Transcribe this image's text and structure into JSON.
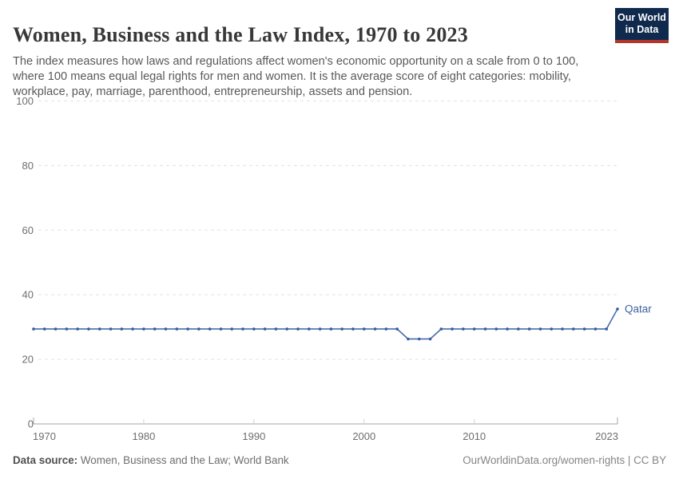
{
  "header": {
    "title": "Women, Business and the Law Index, 1970 to 2023",
    "subtitle": "The index measures how laws and regulations affect women's economic opportunity on a scale from 0 to 100, where 100 means equal legal rights for men and women. It is the average score of eight categories: mobility, workplace, pay, marriage, parenthood, entrepreneurship, assets and pension."
  },
  "logo": {
    "line1": "Our World",
    "line2": "in Data",
    "bg_color": "#102a4e",
    "bar_color": "#b3362b"
  },
  "footer": {
    "datasource_label": "Data source:",
    "datasource_value": " Women, Business and the Law; World Bank",
    "credit": "OurWorldinData.org/women-rights | CC BY"
  },
  "colors": {
    "line": "#4a6cab",
    "point": "#3b5f9f",
    "entity_label": "#3d649f",
    "gridline": "#e3e3e3",
    "axis": "#a6a6a6",
    "decade_tick": "#d0d0d0",
    "tick_label": "#6e6e6e"
  },
  "chart_data": {
    "type": "line",
    "title": "Women, Business and the Law Index, 1970 to 2023",
    "entity": "Qatar",
    "xlabel": "",
    "ylabel": "",
    "xlim": [
      1970,
      2023
    ],
    "ylim": [
      0,
      100
    ],
    "yticks": [
      0,
      20,
      40,
      60,
      80,
      100
    ],
    "xticks": [
      1970,
      1980,
      1990,
      2000,
      2010,
      2023
    ],
    "grid": "horizontal-dashed",
    "legend_position": "end-of-line-label",
    "x": [
      1970,
      1971,
      1972,
      1973,
      1974,
      1975,
      1976,
      1977,
      1978,
      1979,
      1980,
      1981,
      1982,
      1983,
      1984,
      1985,
      1986,
      1987,
      1988,
      1989,
      1990,
      1991,
      1992,
      1993,
      1994,
      1995,
      1996,
      1997,
      1998,
      1999,
      2000,
      2001,
      2002,
      2003,
      2004,
      2005,
      2006,
      2007,
      2008,
      2009,
      2010,
      2011,
      2012,
      2013,
      2014,
      2015,
      2016,
      2017,
      2018,
      2019,
      2020,
      2021,
      2022,
      2023
    ],
    "series": [
      {
        "name": "Qatar",
        "color": "#4a6cab",
        "values": [
          29.4,
          29.4,
          29.4,
          29.4,
          29.4,
          29.4,
          29.4,
          29.4,
          29.4,
          29.4,
          29.4,
          29.4,
          29.4,
          29.4,
          29.4,
          29.4,
          29.4,
          29.4,
          29.4,
          29.4,
          29.4,
          29.4,
          29.4,
          29.4,
          29.4,
          29.4,
          29.4,
          29.4,
          29.4,
          29.4,
          29.4,
          29.4,
          29.4,
          29.4,
          26.3,
          26.3,
          26.3,
          29.4,
          29.4,
          29.4,
          29.4,
          29.4,
          29.4,
          29.4,
          29.4,
          29.4,
          29.4,
          29.4,
          29.4,
          29.4,
          29.4,
          29.4,
          29.4,
          35.6
        ]
      }
    ]
  }
}
